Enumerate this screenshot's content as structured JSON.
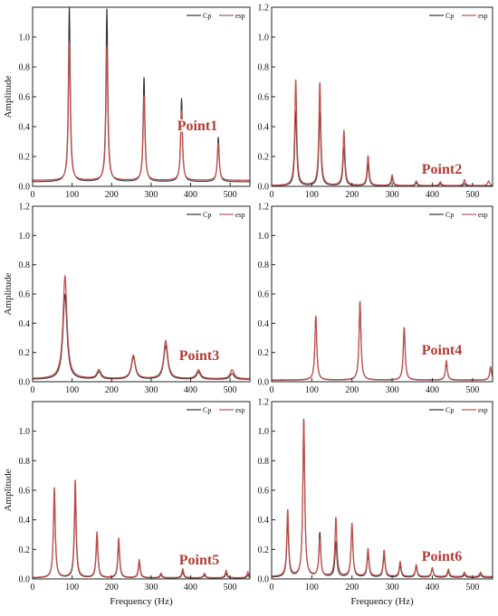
{
  "colors": {
    "cp": "#333333",
    "esp": "#c0504d",
    "point_label": "#b23b36",
    "axis": "#222222",
    "background": "#ffffff"
  },
  "chart_data": [
    {
      "type": "line",
      "panel": "top-left",
      "label": "Point1",
      "xlim": [
        0,
        550
      ],
      "ylim": [
        0,
        1.2
      ],
      "xticks": [
        0,
        100,
        200,
        300,
        400,
        500
      ],
      "yticks": [
        0.0,
        0.2,
        0.4,
        0.6,
        0.8,
        1.0
      ],
      "ylabel": "Amplitude",
      "xlabel": "",
      "legend_position": "top-right",
      "series": [
        {
          "name": "Cp",
          "baseline": 0.03,
          "peaks": [
            [
              93,
              1.18
            ],
            [
              188,
              1.16
            ],
            [
              282,
              0.7
            ],
            [
              377,
              0.56
            ],
            [
              470,
              0.3
            ]
          ]
        },
        {
          "name": "esp",
          "baseline": 0.04,
          "peaks": [
            [
              93,
              0.93
            ],
            [
              188,
              0.9
            ],
            [
              282,
              0.57
            ],
            [
              377,
              0.47
            ],
            [
              470,
              0.25
            ]
          ]
        }
      ]
    },
    {
      "type": "line",
      "panel": "top-right",
      "label": "Point2",
      "xlim": [
        0,
        550
      ],
      "ylim": [
        0,
        1.2
      ],
      "xticks": [
        0,
        100,
        200,
        300,
        400,
        500
      ],
      "yticks": [
        0.0,
        0.2,
        0.4,
        0.6,
        0.8,
        1.0,
        1.2
      ],
      "ylabel": "",
      "xlabel": "",
      "legend_position": "top-right",
      "series": [
        {
          "name": "Cp",
          "baseline": 0.003,
          "peaks": [
            [
              60,
              0.5
            ],
            [
              120,
              0.5
            ],
            [
              180,
              0.26
            ],
            [
              240,
              0.14
            ],
            [
              300,
              0.05
            ],
            [
              360,
              0.02
            ],
            [
              420,
              0.015
            ],
            [
              480,
              0.015
            ]
          ]
        },
        {
          "name": "esp",
          "baseline": 0.005,
          "peaks": [
            [
              60,
              0.71
            ],
            [
              120,
              0.69
            ],
            [
              180,
              0.37
            ],
            [
              240,
              0.2
            ],
            [
              300,
              0.07
            ],
            [
              360,
              0.03
            ],
            [
              420,
              0.025
            ],
            [
              480,
              0.04
            ],
            [
              540,
              0.03
            ]
          ]
        }
      ]
    },
    {
      "type": "line",
      "panel": "middle-left",
      "label": "Point3",
      "xlim": [
        0,
        550
      ],
      "ylim": [
        0,
        1.2
      ],
      "xticks": [
        0,
        100,
        200,
        300,
        400,
        500
      ],
      "yticks": [
        0.0,
        0.2,
        0.4,
        0.6,
        0.8,
        1.0,
        1.2
      ],
      "ylabel": "Amplitude",
      "xlabel": "",
      "legend_position": "top-right",
      "series": [
        {
          "name": "Cp",
          "baseline": 0.015,
          "peaks": [
            [
              82,
              0.58
            ],
            [
              168,
              0.05
            ],
            [
              255,
              0.15
            ],
            [
              337,
              0.23
            ],
            [
              420,
              0.05
            ],
            [
              505,
              0.04
            ]
          ]
        },
        {
          "name": "esp",
          "baseline": 0.02,
          "peaks": [
            [
              82,
              0.7
            ],
            [
              168,
              0.06
            ],
            [
              255,
              0.16
            ],
            [
              337,
              0.26
            ],
            [
              420,
              0.06
            ],
            [
              505,
              0.06
            ]
          ]
        }
      ]
    },
    {
      "type": "line",
      "panel": "middle-right",
      "label": "Point4",
      "xlim": [
        0,
        550
      ],
      "ylim": [
        0,
        1.2
      ],
      "xticks": [
        0,
        100,
        200,
        300,
        400,
        500
      ],
      "yticks": [
        0.0,
        0.2,
        0.4,
        0.6,
        0.8,
        1.0,
        1.2
      ],
      "ylabel": "",
      "xlabel": "",
      "legend_position": "top-right",
      "series": [
        {
          "name": "Cp",
          "baseline": 0.01,
          "peaks": [
            [
              110,
              0.44
            ],
            [
              220,
              0.54
            ],
            [
              330,
              0.36
            ],
            [
              435,
              0.13
            ],
            [
              545,
              0.09
            ]
          ]
        },
        {
          "name": "esp",
          "baseline": 0.012,
          "peaks": [
            [
              110,
              0.44
            ],
            [
              220,
              0.54
            ],
            [
              330,
              0.36
            ],
            [
              435,
              0.13
            ],
            [
              545,
              0.09
            ]
          ]
        }
      ]
    },
    {
      "type": "line",
      "panel": "bottom-left",
      "label": "Point5",
      "xlim": [
        0,
        550
      ],
      "ylim": [
        0,
        1.2
      ],
      "xticks": [
        0,
        100,
        200,
        300,
        400,
        500
      ],
      "yticks": [
        0.0,
        0.2,
        0.4,
        0.6,
        0.8,
        1.0
      ],
      "ylabel": "Amplitude",
      "xlabel": "Frequency (Hz)",
      "legend_position": "top-right",
      "series": [
        {
          "name": "Cp",
          "baseline": 0.006,
          "peaks": [
            [
              55,
              0.58
            ],
            [
              108,
              0.54
            ],
            [
              163,
              0.27
            ],
            [
              218,
              0.23
            ],
            [
              270,
              0.1
            ],
            [
              325,
              0.02
            ],
            [
              380,
              0.04
            ],
            [
              435,
              0.02
            ],
            [
              490,
              0.03
            ],
            [
              545,
              0.02
            ]
          ]
        },
        {
          "name": "esp",
          "baseline": 0.008,
          "peaks": [
            [
              55,
              0.61
            ],
            [
              108,
              0.66
            ],
            [
              163,
              0.31
            ],
            [
              218,
              0.27
            ],
            [
              270,
              0.12
            ],
            [
              325,
              0.03
            ],
            [
              380,
              0.06
            ],
            [
              435,
              0.03
            ],
            [
              490,
              0.05
            ],
            [
              545,
              0.04
            ]
          ]
        }
      ]
    },
    {
      "type": "line",
      "panel": "bottom-right",
      "label": "Point6",
      "xlim": [
        0,
        550
      ],
      "ylim": [
        0,
        1.2
      ],
      "xticks": [
        0,
        100,
        200,
        300,
        400,
        500
      ],
      "yticks": [
        0.0,
        0.2,
        0.4,
        0.6,
        0.8,
        1.0,
        1.2
      ],
      "ylabel": "",
      "xlabel": "Frequency (Hz)",
      "legend_position": "top-right",
      "series": [
        {
          "name": "Cp",
          "baseline": 0.01,
          "peaks": [
            [
              40,
              0.37
            ],
            [
              80,
              1.07
            ],
            [
              120,
              0.3
            ],
            [
              160,
              0.24
            ],
            [
              200,
              0.34
            ],
            [
              240,
              0.16
            ],
            [
              280,
              0.15
            ],
            [
              320,
              0.08
            ],
            [
              360,
              0.07
            ],
            [
              400,
              0.06
            ],
            [
              440,
              0.04
            ],
            [
              480,
              0.02
            ],
            [
              520,
              0.02
            ]
          ]
        },
        {
          "name": "esp",
          "baseline": 0.015,
          "peaks": [
            [
              40,
              0.45
            ],
            [
              80,
              1.06
            ],
            [
              120,
              0.25
            ],
            [
              160,
              0.4
            ],
            [
              200,
              0.36
            ],
            [
              240,
              0.19
            ],
            [
              280,
              0.18
            ],
            [
              320,
              0.1
            ],
            [
              360,
              0.08
            ],
            [
              400,
              0.06
            ],
            [
              440,
              0.05
            ],
            [
              480,
              0.03
            ],
            [
              520,
              0.03
            ]
          ]
        }
      ]
    }
  ]
}
